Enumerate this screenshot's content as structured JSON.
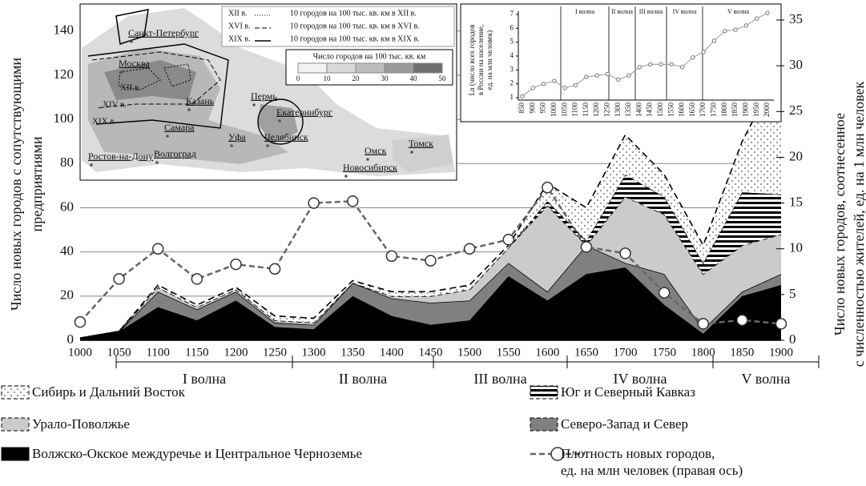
{
  "chart_data": {
    "type": "stacked-area",
    "y_label": [
      "Число новых городов с сопутствующими",
      "предприятиями"
    ],
    "y2_label": [
      "Число новых городов, соотнесенное",
      "с численностью жителей, ед. на 1 млн человек"
    ],
    "x": [
      1000,
      1050,
      1100,
      1150,
      1200,
      1250,
      1300,
      1350,
      1400,
      1450,
      1500,
      1550,
      1600,
      1650,
      1700,
      1750,
      1800,
      1850,
      1900
    ],
    "xlim": [
      1000,
      1900
    ],
    "xticks": [
      1000,
      1050,
      1100,
      1150,
      1200,
      1250,
      1300,
      1350,
      1400,
      1450,
      1500,
      1550,
      1600,
      1650,
      1700,
      1750,
      1800,
      1850,
      1900
    ],
    "ylim": [
      0,
      145
    ],
    "yticks": [
      0,
      20,
      40,
      60,
      80,
      100,
      120,
      140
    ],
    "y2lim": [
      0,
      35
    ],
    "y2ticks": [
      0,
      5,
      10,
      15,
      20,
      25,
      30,
      35
    ],
    "grid": true,
    "waves": [
      "I волна",
      "II волна",
      "III волна",
      "IV волна",
      "V волна"
    ],
    "series": [
      {
        "name": "Волжско-Окское междуречье и Центральное Черноземье",
        "color": "#000000",
        "values": [
          1,
          4,
          15,
          9,
          18,
          6,
          5,
          20,
          11,
          7,
          9,
          29,
          18,
          30,
          33,
          16,
          3,
          20,
          25
        ]
      },
      {
        "name": "Северо-Запад и Север",
        "color": "#808080",
        "values": [
          0,
          0,
          7,
          5,
          4,
          2,
          2,
          6,
          8,
          10,
          9,
          6,
          4,
          13,
          2,
          14,
          2,
          2,
          5
        ]
      },
      {
        "name": "Урало-Поволжье",
        "color": "#cbcbcb",
        "values": [
          0,
          0,
          2,
          1,
          1,
          1,
          1,
          0,
          1,
          3,
          5,
          7,
          39,
          0,
          30,
          27,
          25,
          21,
          18
        ]
      },
      {
        "name": "Юг и Северный Кавказ",
        "color": "stripes",
        "values": [
          0,
          0,
          0,
          0,
          0,
          0,
          0,
          0,
          0,
          0,
          0,
          0,
          2,
          2,
          10,
          8,
          5,
          24,
          18
        ]
      },
      {
        "name": "Сибирь и Дальний Восток",
        "color": "dots",
        "values": [
          0,
          0,
          1,
          1,
          1,
          2,
          2,
          1,
          2,
          2,
          2,
          1,
          8,
          15,
          18,
          10,
          8,
          23,
          58
        ]
      },
      {
        "name": "Плотность новых городов,\nед. на млн человек (правая ось)",
        "color": "#666666",
        "type": "line",
        "axis": "y2",
        "values": [
          2,
          6.7,
          10,
          6.7,
          8.3,
          7.8,
          15,
          15.2,
          9.2,
          8.7,
          10,
          11,
          16.7,
          10.2,
          9.5,
          5.2,
          1.8,
          2.2,
          1.8
        ]
      }
    ]
  },
  "inset_chart": {
    "type": "line",
    "y_label": [
      "Ln (число всех городов",
      "в России на население,",
      "ед. на млн человек)"
    ],
    "x": [
      850,
      900,
      950,
      1000,
      1050,
      1100,
      1150,
      1200,
      1250,
      1300,
      1350,
      1400,
      1450,
      1500,
      1550,
      1600,
      1650,
      1700,
      1750,
      1800,
      1850,
      1900,
      1950,
      2000
    ],
    "values": [
      1.1,
      1.7,
      2.0,
      2.2,
      1.7,
      1.9,
      2.5,
      2.6,
      2.7,
      2.3,
      2.6,
      3.2,
      3.4,
      3.4,
      3.4,
      3.2,
      3.9,
      4.3,
      5.1,
      5.8,
      5.9,
      6.2,
      6.7,
      7.1
    ],
    "xlim": [
      850,
      2000
    ],
    "ylim": [
      1,
      7
    ],
    "yticks": [
      1,
      2,
      3,
      4,
      5,
      6,
      7
    ],
    "waves": [
      "I волна",
      "II волна",
      "III волна",
      "IV волна",
      "V волна"
    ]
  },
  "inset_map": {
    "legend": [
      {
        "line": "XII в.",
        "text": "10 городов на 100 тыс. кв. км в XII в."
      },
      {
        "line": "XVI в.",
        "text": "10 городов на 100 тыс. кв. км в XVI в."
      },
      {
        "line": "XIX в.",
        "text": "10 городов на 100 тыс. кв. км в XIX в."
      }
    ],
    "scale_title": "Число городов на 100 тыс. кв. км",
    "scale": [
      0,
      10,
      20,
      30,
      40,
      50
    ],
    "cities": [
      "Санкт-Петербург",
      "Москва",
      "Казань",
      "Пермь",
      "Екатеринбург",
      "Самара",
      "Уфа",
      "Челябинск",
      "Омск",
      "Ростов-на-Дону",
      "Волгоград",
      "Новосибирск",
      "Томск"
    ],
    "centuries": [
      "XII в.",
      "XIV в.",
      "XIX в."
    ]
  }
}
